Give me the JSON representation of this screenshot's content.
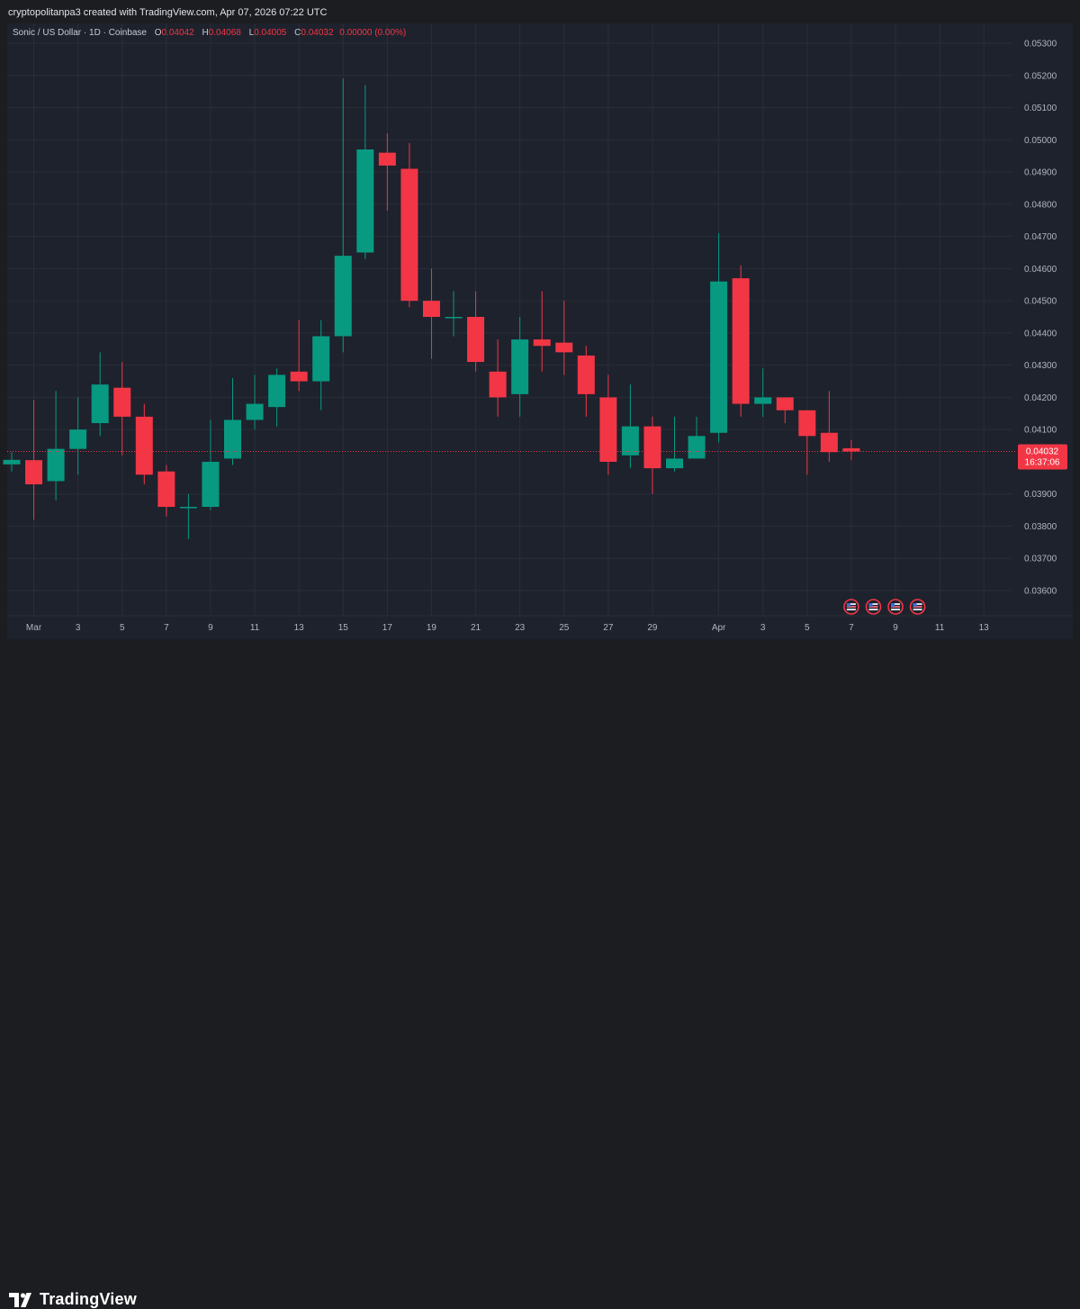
{
  "header": {
    "credit": "cryptopolitanpa3 created with TradingView.com, Apr 07, 2026 07:22 UTC"
  },
  "legend": {
    "symbol": "Sonic / US Dollar · 1D · Coinbase",
    "open_label": "O",
    "open": "0.04042",
    "high_label": "H",
    "high": "0.04068",
    "low_label": "L",
    "low": "0.04005",
    "close_label": "C",
    "close": "0.04032",
    "change": "0.00000 (0.00%)"
  },
  "price_tag": {
    "price": "0.04032",
    "countdown": "16:37:06"
  },
  "brand": {
    "name": "TradingView"
  },
  "colors": {
    "up": "#089981",
    "down": "#f23645",
    "background": "#1e222d",
    "grid": "#2a2e39"
  },
  "chart_data": {
    "type": "candlestick",
    "x_ticks": [
      "Mar",
      "3",
      "5",
      "7",
      "9",
      "11",
      "13",
      "15",
      "17",
      "19",
      "21",
      "23",
      "25",
      "27",
      "29",
      "Apr",
      "3",
      "5",
      "7",
      "9",
      "11",
      "13"
    ],
    "y_ticks": [
      "0.05300",
      "0.05200",
      "0.05100",
      "0.05000",
      "0.04900",
      "0.04800",
      "0.04700",
      "0.04600",
      "0.04500",
      "0.04400",
      "0.04300",
      "0.04200",
      "0.04100",
      "0.03900",
      "0.03800",
      "0.03700",
      "0.03600"
    ],
    "ylim": [
      0.0353,
      0.0536
    ],
    "last_price": 0.04032,
    "event_markers": [
      "7",
      "8",
      "9",
      "10"
    ],
    "candles": [
      {
        "d": "Feb 28",
        "o": 0.03992,
        "h": 0.0403,
        "l": 0.0397,
        "c": 0.04006
      },
      {
        "d": "Mar 1",
        "o": 0.04005,
        "h": 0.04192,
        "l": 0.0382,
        "c": 0.0393
      },
      {
        "d": "Mar 2",
        "o": 0.0394,
        "h": 0.0422,
        "l": 0.0388,
        "c": 0.0404
      },
      {
        "d": "Mar 3",
        "o": 0.0404,
        "h": 0.042,
        "l": 0.0396,
        "c": 0.041
      },
      {
        "d": "Mar 4",
        "o": 0.0412,
        "h": 0.0434,
        "l": 0.0408,
        "c": 0.0424
      },
      {
        "d": "Mar 5",
        "o": 0.0423,
        "h": 0.0431,
        "l": 0.0402,
        "c": 0.0414
      },
      {
        "d": "Mar 6",
        "o": 0.0414,
        "h": 0.0418,
        "l": 0.0393,
        "c": 0.0396
      },
      {
        "d": "Mar 7",
        "o": 0.0397,
        "h": 0.0399,
        "l": 0.0383,
        "c": 0.0386
      },
      {
        "d": "Mar 8",
        "o": 0.0386,
        "h": 0.039,
        "l": 0.0376,
        "c": 0.0386
      },
      {
        "d": "Mar 9",
        "o": 0.0386,
        "h": 0.0413,
        "l": 0.0385,
        "c": 0.04
      },
      {
        "d": "Mar 10",
        "o": 0.0401,
        "h": 0.0426,
        "l": 0.0399,
        "c": 0.0413
      },
      {
        "d": "Mar 11",
        "o": 0.0413,
        "h": 0.0427,
        "l": 0.041,
        "c": 0.0418
      },
      {
        "d": "Mar 12",
        "o": 0.0417,
        "h": 0.0429,
        "l": 0.0411,
        "c": 0.0427
      },
      {
        "d": "Mar 13",
        "o": 0.0428,
        "h": 0.0444,
        "l": 0.0422,
        "c": 0.0425
      },
      {
        "d": "Mar 14",
        "o": 0.0425,
        "h": 0.0444,
        "l": 0.0416,
        "c": 0.0439
      },
      {
        "d": "Mar 15",
        "o": 0.0439,
        "h": 0.0519,
        "l": 0.0434,
        "c": 0.0464
      },
      {
        "d": "Mar 16",
        "o": 0.0465,
        "h": 0.0517,
        "l": 0.0463,
        "c": 0.0497
      },
      {
        "d": "Mar 17",
        "o": 0.0496,
        "h": 0.0502,
        "l": 0.0478,
        "c": 0.0492
      },
      {
        "d": "Mar 18",
        "o": 0.0491,
        "h": 0.0499,
        "l": 0.0448,
        "c": 0.045
      },
      {
        "d": "Mar 19",
        "o": 0.045,
        "h": 0.046,
        "l": 0.0432,
        "c": 0.0445
      },
      {
        "d": "Mar 20",
        "o": 0.0445,
        "h": 0.0453,
        "l": 0.0439,
        "c": 0.0445
      },
      {
        "d": "Mar 21",
        "o": 0.0445,
        "h": 0.0453,
        "l": 0.0428,
        "c": 0.0431
      },
      {
        "d": "Mar 22",
        "o": 0.0428,
        "h": 0.0438,
        "l": 0.0414,
        "c": 0.042
      },
      {
        "d": "Mar 23",
        "o": 0.0421,
        "h": 0.0445,
        "l": 0.0414,
        "c": 0.0438
      },
      {
        "d": "Mar 24",
        "o": 0.0438,
        "h": 0.0453,
        "l": 0.0428,
        "c": 0.0436
      },
      {
        "d": "Mar 25",
        "o": 0.0437,
        "h": 0.045,
        "l": 0.0427,
        "c": 0.0434
      },
      {
        "d": "Mar 26",
        "o": 0.0433,
        "h": 0.0436,
        "l": 0.0414,
        "c": 0.0421
      },
      {
        "d": "Mar 27",
        "o": 0.042,
        "h": 0.0427,
        "l": 0.0396,
        "c": 0.04
      },
      {
        "d": "Mar 28",
        "o": 0.0402,
        "h": 0.0424,
        "l": 0.0398,
        "c": 0.0411
      },
      {
        "d": "Mar 29",
        "o": 0.0411,
        "h": 0.0414,
        "l": 0.039,
        "c": 0.0398
      },
      {
        "d": "Mar 30",
        "o": 0.0398,
        "h": 0.0414,
        "l": 0.0397,
        "c": 0.0401
      },
      {
        "d": "Mar 31",
        "o": 0.0401,
        "h": 0.0414,
        "l": 0.0401,
        "c": 0.0408
      },
      {
        "d": "Apr 1",
        "o": 0.0409,
        "h": 0.0471,
        "l": 0.0406,
        "c": 0.0456
      },
      {
        "d": "Apr 2",
        "o": 0.0457,
        "h": 0.0461,
        "l": 0.0414,
        "c": 0.0418
      },
      {
        "d": "Apr 3",
        "o": 0.0418,
        "h": 0.0429,
        "l": 0.0414,
        "c": 0.042
      },
      {
        "d": "Apr 4",
        "o": 0.042,
        "h": 0.042,
        "l": 0.0412,
        "c": 0.0416
      },
      {
        "d": "Apr 5",
        "o": 0.0416,
        "h": 0.0416,
        "l": 0.0396,
        "c": 0.0408
      },
      {
        "d": "Apr 6",
        "o": 0.0409,
        "h": 0.0422,
        "l": 0.04,
        "c": 0.0403
      },
      {
        "d": "Apr 7",
        "o": 0.04042,
        "h": 0.04068,
        "l": 0.04005,
        "c": 0.04032
      }
    ]
  }
}
